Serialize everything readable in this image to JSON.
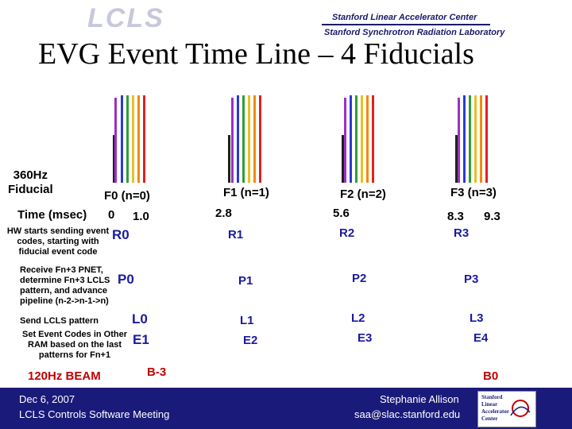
{
  "header": {
    "logo_text": "LCLS",
    "org_line1": "Stanford Linear Accelerator Center",
    "org_line2": "Stanford Synchrotron Radiation Laboratory"
  },
  "title": "EVG Event Time Line – 4 Fiducials",
  "rows": {
    "fiducial_label": "360Hz\nFiducial",
    "time_label": "Time (msec)",
    "hw_label": "HW starts sending event codes, starting with fiducial event code",
    "pnet_label": "Receive Fn+3 PNET, determine Fn+3 LCLS pattern, and advance pipeline (n-2->n-1->n)",
    "send_label": "Send LCLS pattern",
    "set_label": "Set Event Codes in Other RAM based on the last patterns for Fn+1",
    "beam_label": "120Hz BEAM"
  },
  "fiducials": [
    {
      "name": "F0 (n=0)",
      "time_a": "0",
      "time_b": "1.0",
      "r": "R0",
      "p": "P0",
      "l": "L0",
      "e": "E1"
    },
    {
      "name": "F1 (n=1)",
      "time_a": "2.8",
      "r": "R1",
      "p": "P1",
      "l": "L1",
      "e": "E2"
    },
    {
      "name": "F2 (n=2)",
      "time_a": "5.6",
      "r": "R2",
      "p": "P2",
      "l": "L2",
      "e": "E3"
    },
    {
      "name": "F3 (n=3)",
      "time_a": "8.3",
      "time_b": "9.3",
      "r": "R3",
      "p": "P3",
      "l": "L3",
      "e": "E4"
    }
  ],
  "beam_markers": {
    "b_minus3": "B-3",
    "b0": "B0"
  },
  "footer": {
    "date": "Dec 6, 2007",
    "meeting": "LCLS Controls Software Meeting",
    "author": "Stephanie Allison",
    "email": "saa@slac.stanford.edu",
    "logo_lines": [
      "Stanford",
      "Linear",
      "Accelerator",
      "Center"
    ]
  },
  "colors": {
    "line_colors": [
      "#202020",
      "#9b30c8",
      "#2a3ad8",
      "#2e9e3a",
      "#e8c020",
      "#f08a10",
      "#e02020"
    ],
    "blue_text": "#1a1aa0",
    "red_text": "#c00000",
    "footer_bg": "#1a1a7a"
  }
}
